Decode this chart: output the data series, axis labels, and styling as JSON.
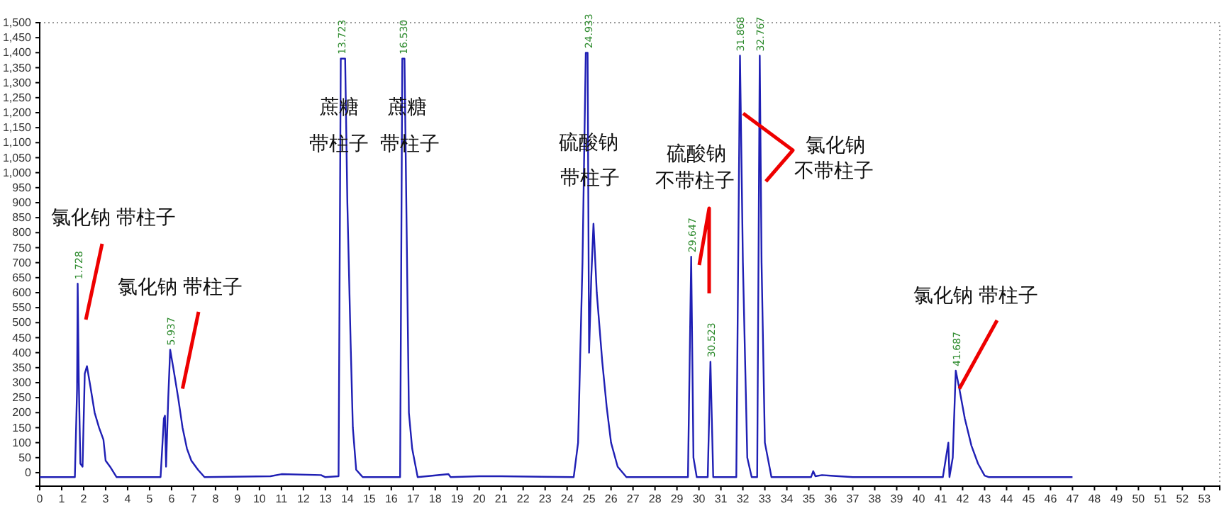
{
  "chart_data": {
    "type": "line",
    "x": [
      0,
      1.6,
      1.7,
      1.728,
      1.78,
      1.85,
      1.95,
      2.05,
      2.15,
      2.3,
      2.5,
      2.7,
      2.9,
      3.0,
      3.2,
      3.5,
      5.5,
      5.65,
      5.7,
      5.75,
      5.85,
      5.937,
      6.1,
      6.3,
      6.5,
      6.7,
      6.9,
      7.2,
      7.5,
      10.5,
      11,
      12.8,
      13,
      13.6,
      13.7,
      13.9,
      14.0,
      14.15,
      14.25,
      14.4,
      14.7,
      16.4,
      16.5,
      16.6,
      16.7,
      16.8,
      16.95,
      17.2,
      18.6,
      18.7,
      20,
      21,
      24.3,
      24.5,
      24.7,
      24.85,
      24.933,
      25,
      25.1,
      25.2,
      25.35,
      25.6,
      25.8,
      26,
      26.3,
      26.7,
      29.5,
      29.647,
      29.75,
      29.9,
      30.4,
      30.523,
      30.65,
      31.7,
      31.868,
      32,
      32.2,
      32.4,
      32.65,
      32.767,
      32.85,
      33.0,
      33.3,
      35.1,
      35.2,
      35.3,
      35.6,
      36,
      37,
      41.1,
      41.35,
      41.4,
      41.55,
      41.687,
      41.85,
      42.1,
      42.4,
      42.7,
      43,
      43.2,
      47
    ],
    "series": [
      {
        "color": "#1f1fb4",
        "values": [
          -15,
          -15,
          280,
          630,
          300,
          30,
          20,
          330,
          355,
          290,
          200,
          150,
          110,
          40,
          20,
          -15,
          -15,
          180,
          190,
          20,
          250,
          410,
          340,
          250,
          150,
          80,
          40,
          10,
          -15,
          -12,
          -5,
          -8,
          -15,
          -12,
          1380,
          1380,
          900,
          430,
          150,
          10,
          -15,
          -15,
          1380,
          1380,
          800,
          200,
          80,
          -15,
          -5,
          -15,
          -12,
          -12,
          -15,
          100,
          700,
          1400,
          1400,
          400,
          650,
          830,
          600,
          370,
          220,
          100,
          20,
          -15,
          -15,
          720,
          50,
          -15,
          -15,
          370,
          -15,
          -15,
          1390,
          700,
          50,
          -15,
          -15,
          1390,
          700,
          100,
          -15,
          -15,
          5,
          -12,
          -8,
          -10,
          -15,
          -15,
          100,
          -15,
          50,
          340,
          280,
          180,
          90,
          30,
          -10,
          -15,
          -15
        ]
      }
    ],
    "xlim": [
      0,
      53.7
    ],
    "ylim": [
      -45,
      1500
    ],
    "xticks": [
      0,
      1,
      2,
      3,
      4,
      5,
      6,
      7,
      8,
      9,
      10,
      11,
      12,
      13,
      14,
      15,
      16,
      17,
      18,
      19,
      20,
      21,
      22,
      23,
      24,
      25,
      26,
      27,
      28,
      29,
      30,
      31,
      32,
      33,
      34,
      35,
      36,
      37,
      38,
      39,
      40,
      41,
      42,
      43,
      44,
      45,
      46,
      47,
      48,
      49,
      50,
      51,
      52,
      53
    ],
    "yticks": [
      0,
      50,
      100,
      150,
      200,
      250,
      300,
      350,
      400,
      450,
      500,
      550,
      600,
      650,
      700,
      750,
      800,
      850,
      900,
      950,
      {
        "value": 1000,
        "label": "1,000"
      },
      {
        "value": 1050,
        "label": "1,050"
      },
      {
        "value": 1100,
        "label": "1,100"
      },
      {
        "value": 1150,
        "label": "1,150"
      },
      {
        "value": 1200,
        "label": "1,200"
      },
      {
        "value": 1250,
        "label": "1,250"
      },
      {
        "value": 1300,
        "label": "1,300"
      },
      {
        "value": 1350,
        "label": "1,350"
      },
      {
        "value": 1400,
        "label": "1,400"
      },
      {
        "value": 1450,
        "label": "1,450"
      },
      {
        "value": 1500,
        "label": "1,500"
      }
    ],
    "annotations": [
      {
        "text": "1.728",
        "x": 1.728,
        "y": 630
      },
      {
        "text": "5.937",
        "x": 5.937,
        "y": 410
      },
      {
        "text": "13.723",
        "x": 13.723,
        "y": 1380
      },
      {
        "text": "16.530",
        "x": 16.53,
        "y": 1380
      },
      {
        "text": "24.933",
        "x": 24.933,
        "y": 1400
      },
      {
        "text": "29.647",
        "x": 29.647,
        "y": 720
      },
      {
        "text": "30.523",
        "x": 30.523,
        "y": 370
      },
      {
        "text": "31.868",
        "x": 31.868,
        "y": 1390
      },
      {
        "text": "32.767",
        "x": 32.767,
        "y": 1390
      },
      {
        "text": "41.687",
        "x": 41.687,
        "y": 340
      },
      {
        "text": "氯化钠 带柱子",
        "x": 2.1,
        "y": 510
      },
      {
        "text": "氯化钠  带柱子",
        "x": 6.5,
        "y": 280
      },
      "蔗糖",
      "带柱子",
      "蔗糖",
      "带柱子",
      "硫酸钠",
      "带柱子",
      "硫酸钠",
      "不带柱子",
      "氯化钠",
      "不带柱子",
      {
        "text": "氯化钠  带柱子",
        "x": 41.85,
        "y": 280
      }
    ]
  }
}
